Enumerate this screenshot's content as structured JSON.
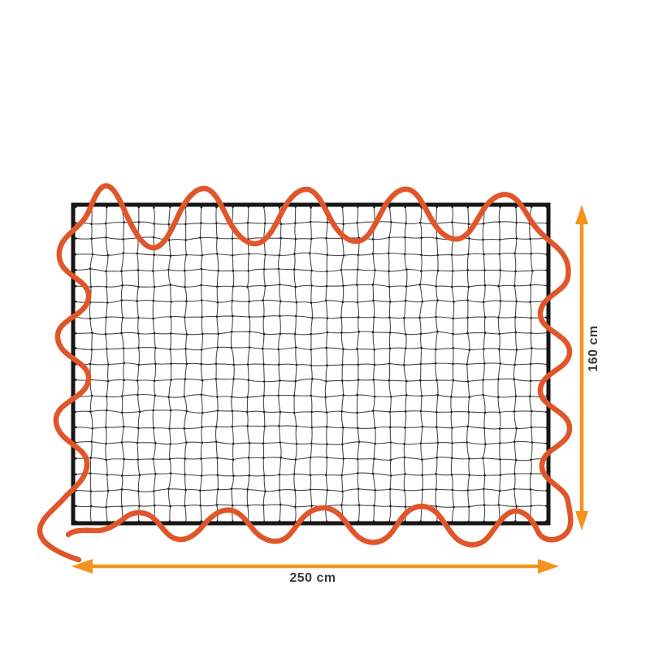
{
  "labels": {
    "width": "250 cm",
    "height": "160 cm"
  },
  "colors": {
    "cord": "#E0562A",
    "arrow": "#F6921E",
    "net-line": "#4A4A4A",
    "net-knot": "#1F1F1F",
    "net-border": "#161616",
    "label-text": "#3A3A3A",
    "background": "#FFFFFF"
  }
}
